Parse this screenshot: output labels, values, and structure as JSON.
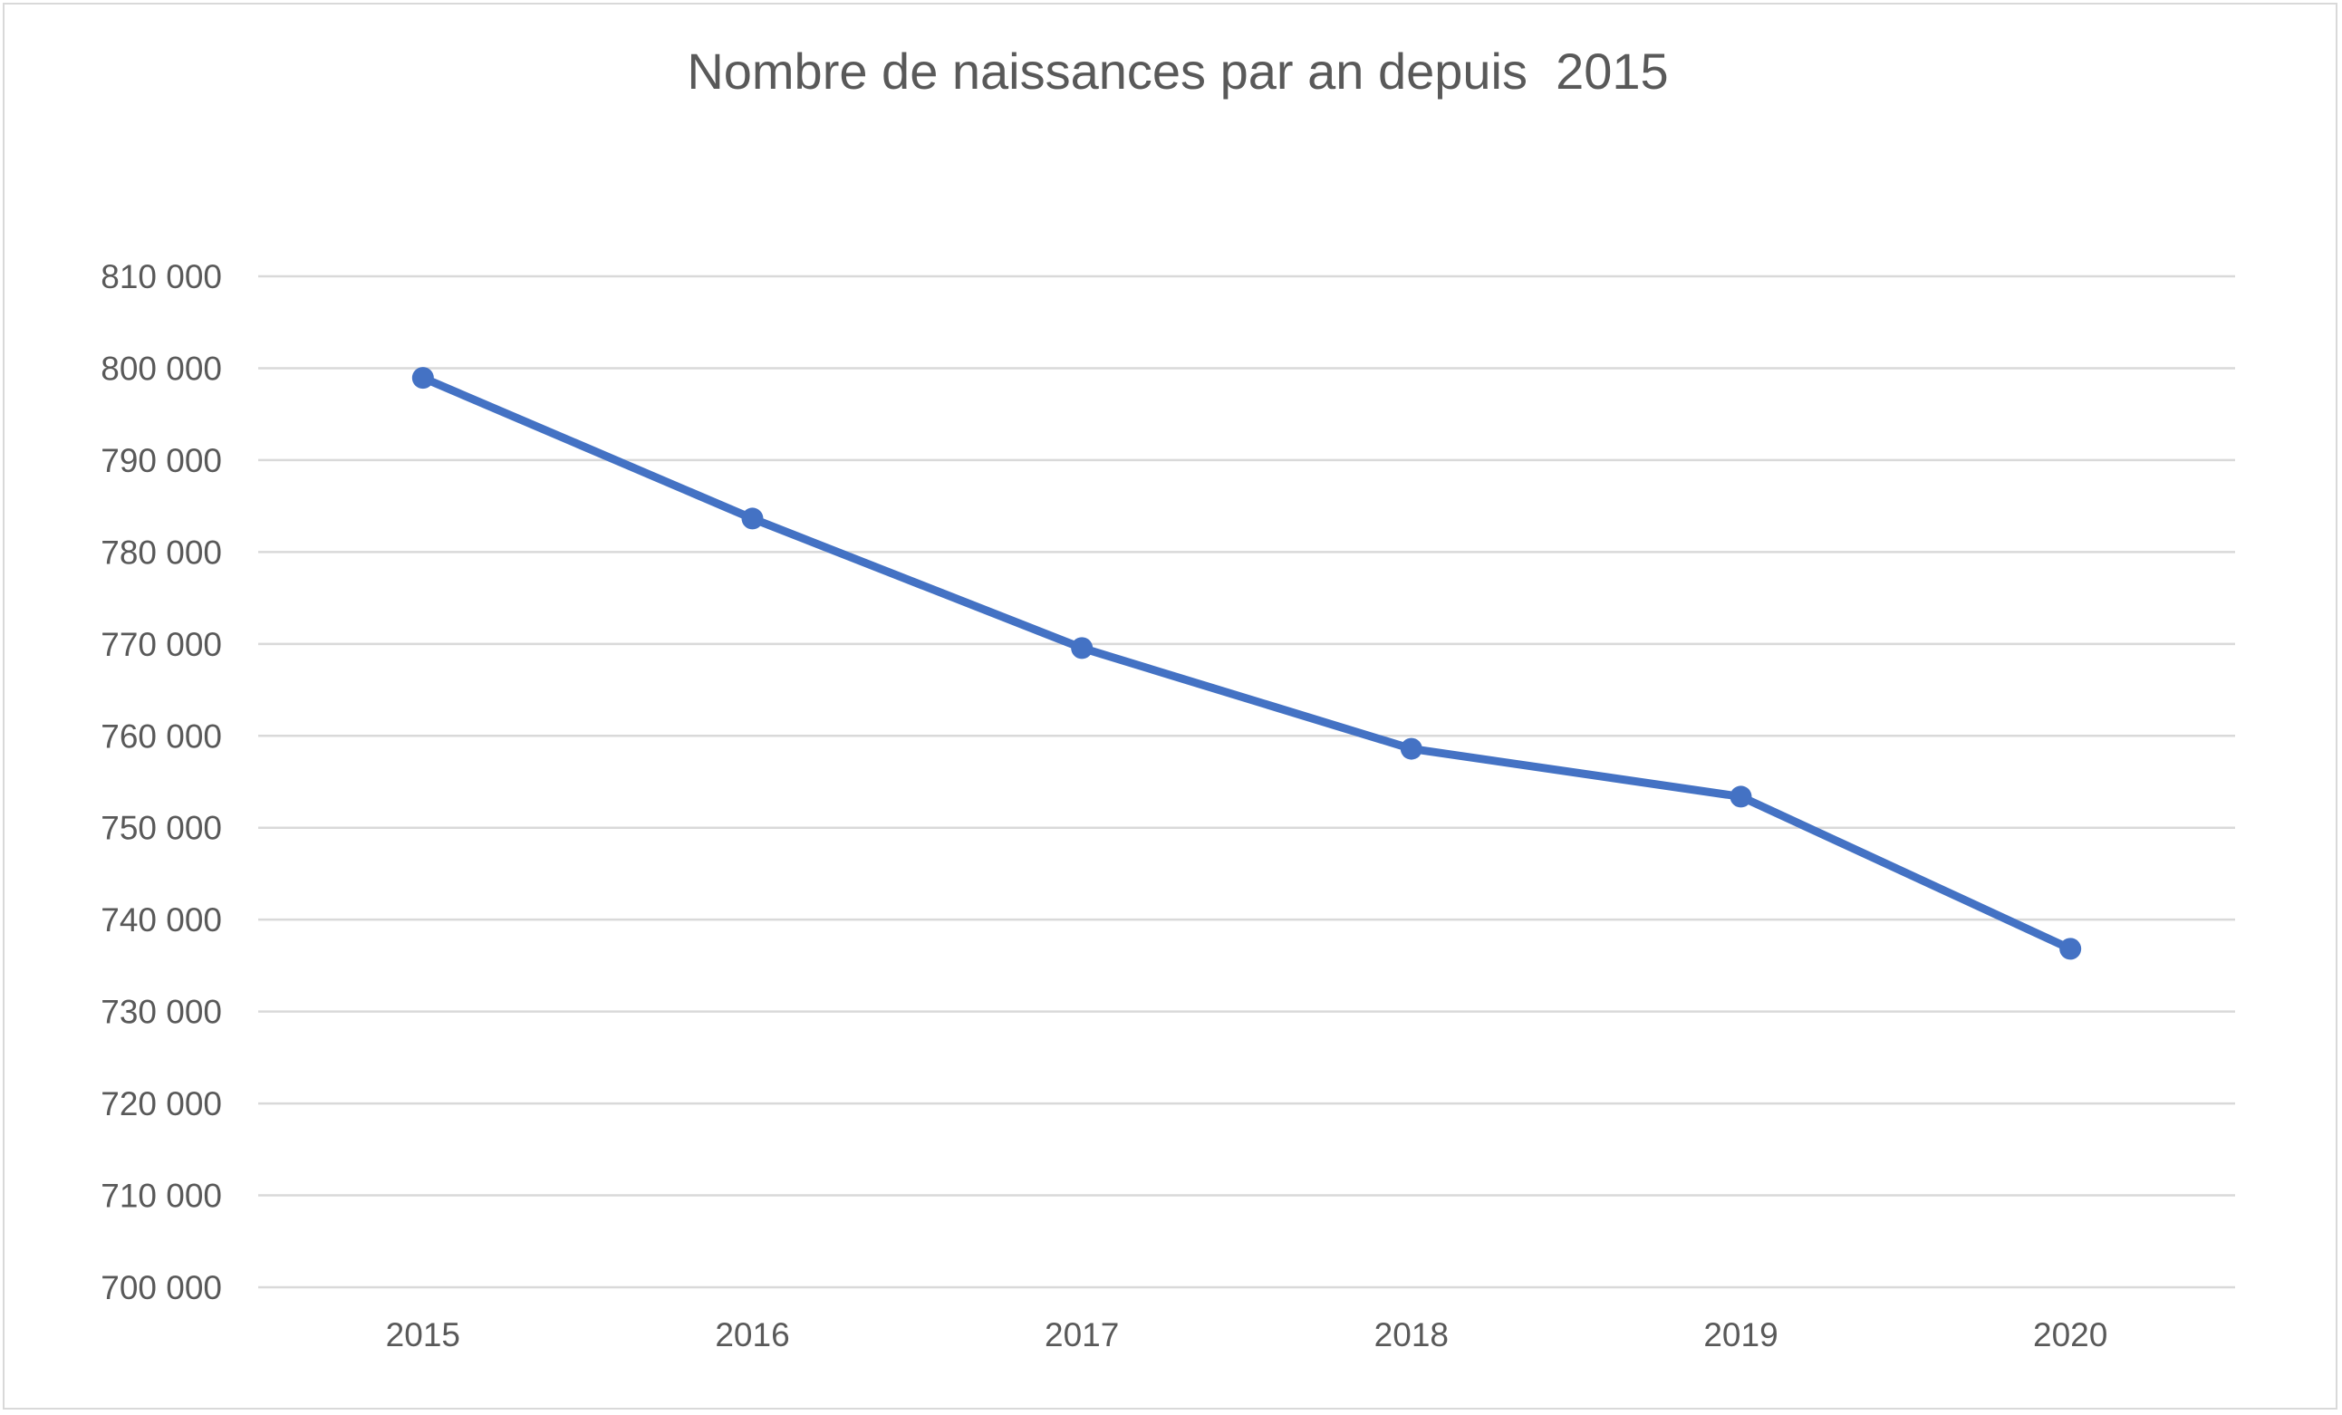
{
  "chart_data": {
    "type": "line",
    "title": "Nombre de naissances par an depuis  2015",
    "xlabel": "",
    "ylabel": "",
    "categories": [
      "2015",
      "2016",
      "2017",
      "2018",
      "2019",
      "2020"
    ],
    "series": [
      {
        "values": [
          798948,
          783640,
          769553,
          758590,
          753383,
          736827
        ],
        "color": "#4472c4"
      }
    ],
    "ylim": [
      700000,
      810000
    ],
    "yticks": [
      700000,
      710000,
      720000,
      730000,
      740000,
      750000,
      760000,
      770000,
      780000,
      790000,
      800000,
      810000
    ],
    "ytick_labels": [
      "700 000",
      "710 000",
      "720 000",
      "730 000",
      "740 000",
      "750 000",
      "760 000",
      "770 000",
      "780 000",
      "790 000",
      "800 000",
      "810 000"
    ],
    "grid": true,
    "legend": "none",
    "markers": true
  }
}
